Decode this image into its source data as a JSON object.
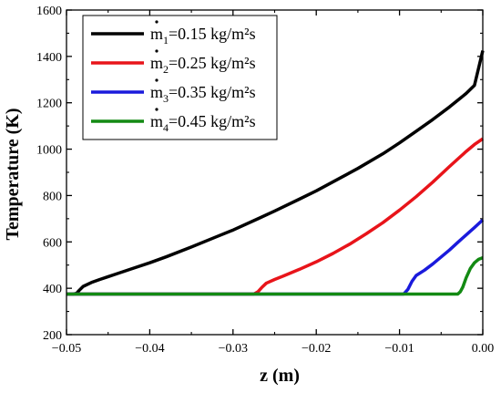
{
  "chart_data": {
    "type": "line",
    "xlabel": "z (m)",
    "ylabel": "Temperature (K)",
    "xlim": [
      -0.05,
      0.0
    ],
    "ylim": [
      200,
      1600
    ],
    "x_ticks": [
      -0.05,
      -0.04,
      -0.03,
      -0.02,
      -0.01,
      0.0
    ],
    "x_tick_labels": [
      "−0.05",
      "−0.04",
      "−0.03",
      "−0.02",
      "−0.01",
      "0.00"
    ],
    "y_ticks": [
      200,
      400,
      600,
      800,
      1000,
      1200,
      1400,
      1600
    ],
    "y_tick_labels": [
      "200",
      "400",
      "600",
      "800",
      "1000",
      "1200",
      "1400",
      "1600"
    ],
    "grid": false,
    "legend_position": "top-left",
    "series": [
      {
        "name": "ṁ₁=0.15 kg/m²s",
        "legend_base": "m",
        "legend_sub": "1",
        "legend_tail": "=0.15 kg/m²s",
        "color": "#000000",
        "x": [
          -0.05,
          -0.0492,
          -0.0488,
          -0.0485,
          -0.048,
          -0.047,
          -0.046,
          -0.045,
          -0.044,
          -0.042,
          -0.04,
          -0.038,
          -0.035,
          -0.032,
          -0.03,
          -0.027,
          -0.025,
          -0.022,
          -0.02,
          -0.017,
          -0.015,
          -0.012,
          -0.01,
          -0.008,
          -0.006,
          -0.004,
          -0.002,
          -0.001,
          0.0
        ],
        "y": [
          375,
          375,
          378,
          390,
          408,
          425,
          438,
          450,
          462,
          486,
          510,
          536,
          578,
          622,
          651,
          700,
          733,
          785,
          820,
          878,
          917,
          980,
          1027,
          1077,
          1128,
          1182,
          1240,
          1275,
          1425
        ]
      },
      {
        "name": "ṁ₂=0.25 kg/m²s",
        "legend_base": "m",
        "legend_sub": "2",
        "legend_tail": "=0.25 kg/m²s",
        "color": "#e8141a",
        "x": [
          -0.05,
          -0.0275,
          -0.027,
          -0.0265,
          -0.026,
          -0.025,
          -0.024,
          -0.022,
          -0.02,
          -0.018,
          -0.016,
          -0.014,
          -0.012,
          -0.01,
          -0.008,
          -0.006,
          -0.004,
          -0.002,
          -0.001,
          0.0
        ],
        "y": [
          375,
          375,
          385,
          405,
          422,
          438,
          452,
          482,
          514,
          550,
          590,
          635,
          683,
          737,
          795,
          858,
          925,
          990,
          1020,
          1045
        ]
      },
      {
        "name": "ṁ₃=0.35 kg/m²s",
        "legend_base": "m",
        "legend_sub": "3",
        "legend_tail": "=0.35 kg/m²s",
        "color": "#1a1adc",
        "x": [
          -0.05,
          -0.0095,
          -0.009,
          -0.0085,
          -0.008,
          -0.007,
          -0.006,
          -0.005,
          -0.004,
          -0.003,
          -0.002,
          -0.001,
          0.0
        ],
        "y": [
          375,
          375,
          395,
          430,
          455,
          478,
          505,
          535,
          565,
          598,
          630,
          662,
          695
        ]
      },
      {
        "name": "ṁ₄=0.45 kg/m²s",
        "legend_base": "m",
        "legend_sub": "4",
        "legend_tail": "=0.45 kg/m²s",
        "color": "#138a13",
        "x": [
          -0.05,
          -0.003,
          -0.0027,
          -0.0024,
          -0.002,
          -0.0015,
          -0.001,
          -0.0005,
          0.0
        ],
        "y": [
          375,
          375,
          385,
          405,
          445,
          485,
          510,
          525,
          532
        ]
      }
    ]
  }
}
